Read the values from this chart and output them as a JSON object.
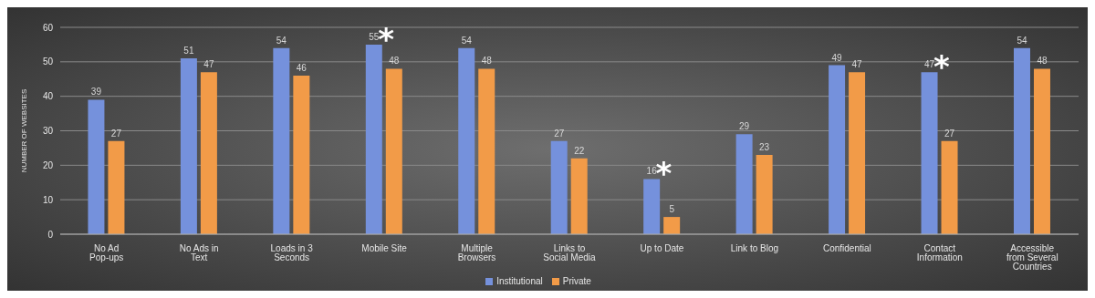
{
  "chart_data": {
    "type": "bar",
    "ylabel": "NUMBER OF WEBSITES",
    "categories": [
      "No Ad Pop-ups",
      "No Ads in Text",
      "Loads in 3 Seconds",
      "Mobile Site",
      "Multiple Browsers",
      "Links to Social Media",
      "Up to Date",
      "Link to Blog",
      "Confidential",
      "Contact Information",
      "Accessible from Several Countries"
    ],
    "series": [
      {
        "name": "Institutional",
        "color": "#7591dc",
        "values": [
          39,
          51,
          54,
          55,
          54,
          27,
          16,
          29,
          49,
          47,
          54
        ]
      },
      {
        "name": "Private",
        "color": "#f29b48",
        "values": [
          27,
          47,
          46,
          48,
          48,
          22,
          5,
          23,
          47,
          27,
          48
        ]
      }
    ],
    "ylim": [
      0,
      60
    ],
    "yticks": [
      0,
      10,
      20,
      30,
      40,
      50,
      60
    ],
    "grid": "y",
    "legend": "bottom",
    "data_labels": true,
    "annotations": [
      {
        "text": "*",
        "x": "Mobile Site",
        "y": 55
      },
      {
        "text": "*",
        "x": "Up to Date",
        "y": 16
      },
      {
        "text": "*",
        "x": "Contact Information",
        "y": 47
      }
    ]
  }
}
